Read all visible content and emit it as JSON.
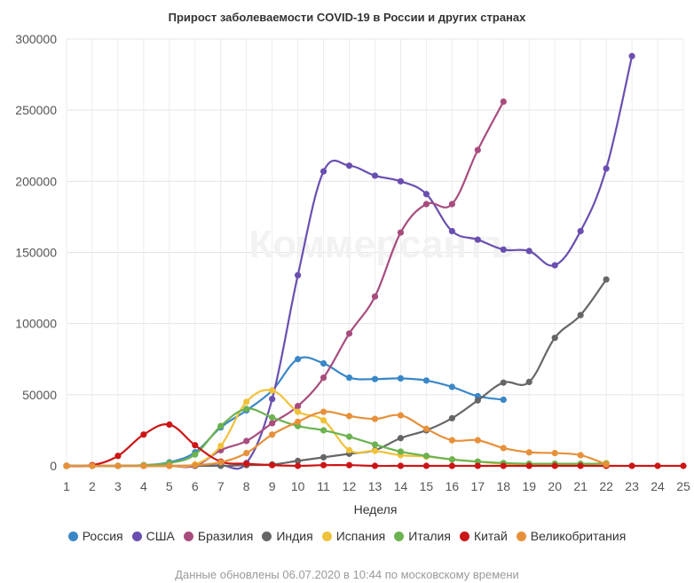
{
  "chart_data": {
    "type": "line",
    "title": "Прирост заболеваемости COVID-19 в России и других странах",
    "xlabel": "Неделя",
    "ylabel": "",
    "xlim": [
      1,
      25
    ],
    "ylim": [
      0,
      300000
    ],
    "x_ticks": [
      1,
      2,
      3,
      4,
      5,
      6,
      7,
      8,
      9,
      10,
      11,
      12,
      13,
      14,
      15,
      16,
      17,
      18,
      19,
      20,
      21,
      22,
      23,
      24,
      25
    ],
    "y_ticks": [
      0,
      50000,
      100000,
      150000,
      200000,
      250000,
      300000
    ],
    "grid": true,
    "legend_position": "bottom",
    "watermark": "Коммерсантъ",
    "footnote": "Данные обновлены 06.07.2020 в 10:44 по московскому времени",
    "series": [
      {
        "name": "Россия",
        "color": "#3a87c8",
        "x": [
          1,
          2,
          3,
          4,
          5,
          6,
          7,
          8,
          9,
          10,
          11,
          12,
          13,
          14,
          15,
          16,
          17,
          18
        ],
        "values": [
          0,
          0,
          0,
          500,
          2500,
          9500,
          27000,
          39000,
          53000,
          75000,
          72000,
          62000,
          61000,
          61500,
          60000,
          55500,
          49000,
          46500
        ]
      },
      {
        "name": "США",
        "color": "#6a4fb0",
        "x": [
          1,
          2,
          3,
          4,
          5,
          6,
          7,
          8,
          9,
          10,
          11,
          12,
          13,
          14,
          15,
          16,
          17,
          18,
          19,
          20,
          21,
          22,
          23
        ],
        "values": [
          0,
          0,
          0,
          0,
          0,
          0,
          500,
          2000,
          47000,
          134000,
          207000,
          211000,
          204000,
          200000,
          191000,
          165000,
          159000,
          152000,
          151000,
          141000,
          165000,
          209000,
          288000
        ]
      },
      {
        "name": "Бразилия",
        "color": "#a84c7e",
        "x": [
          1,
          2,
          3,
          4,
          5,
          6,
          7,
          8,
          9,
          10,
          11,
          12,
          13,
          14,
          15,
          16,
          17,
          18
        ],
        "values": [
          0,
          0,
          0,
          0,
          0,
          0,
          11000,
          17500,
          30000,
          42000,
          62000,
          93000,
          119000,
          164000,
          184000,
          184000,
          222000,
          256000
        ]
      },
      {
        "name": "Индия",
        "color": "#666666",
        "x": [
          1,
          2,
          3,
          4,
          5,
          6,
          7,
          8,
          9,
          10,
          11,
          12,
          13,
          14,
          15,
          16,
          17,
          18,
          19,
          20,
          21,
          22
        ],
        "values": [
          0,
          0,
          0,
          0,
          0,
          0,
          0,
          500,
          1000,
          3500,
          6000,
          8500,
          11000,
          19500,
          25000,
          33500,
          46000,
          58500,
          59000,
          90000,
          106000,
          131000
        ]
      },
      {
        "name": "Испания",
        "color": "#f0c23b",
        "x": [
          1,
          2,
          3,
          4,
          5,
          6,
          7,
          8,
          9,
          10,
          11,
          12,
          13,
          14,
          15,
          16,
          17,
          18,
          19,
          20,
          21,
          22
        ],
        "values": [
          0,
          0,
          0,
          0,
          0,
          1000,
          14000,
          45000,
          53000,
          38000,
          32000,
          11000,
          10500,
          7500,
          6500,
          4500,
          3000,
          1500,
          1000,
          1500,
          1000,
          2000
        ]
      },
      {
        "name": "Италия",
        "color": "#6cb24f",
        "x": [
          1,
          2,
          3,
          4,
          5,
          6,
          7,
          8,
          9,
          10,
          11,
          12,
          13,
          14,
          15,
          16,
          17,
          18,
          19,
          20,
          21,
          22
        ],
        "values": [
          0,
          0,
          0,
          500,
          2000,
          8000,
          28000,
          40000,
          34000,
          28000,
          25000,
          20500,
          15000,
          10000,
          7000,
          4500,
          3000,
          2000,
          1500,
          1500,
          1500,
          1500
        ]
      },
      {
        "name": "Китай",
        "color": "#cc1515",
        "x": [
          1,
          2,
          3,
          4,
          5,
          6,
          7,
          8,
          9,
          10,
          11,
          12,
          13,
          14,
          15,
          16,
          17,
          18,
          19,
          20,
          21,
          22,
          23,
          24,
          25
        ],
        "values": [
          0,
          500,
          7000,
          22000,
          29000,
          14500,
          3000,
          1500,
          500,
          0,
          500,
          500,
          0,
          0,
          0,
          0,
          0,
          0,
          0,
          0,
          0,
          0,
          0,
          0,
          0
        ]
      },
      {
        "name": "Великобритания",
        "color": "#e6913a",
        "x": [
          1,
          2,
          3,
          4,
          5,
          6,
          7,
          8,
          9,
          10,
          11,
          12,
          13,
          14,
          15,
          16,
          17,
          18,
          19,
          20,
          21,
          22
        ],
        "values": [
          0,
          0,
          0,
          0,
          0,
          500,
          2500,
          9000,
          22000,
          31000,
          38000,
          35000,
          33000,
          35500,
          26000,
          18000,
          18000,
          12500,
          9500,
          9000,
          7500,
          1000
        ]
      }
    ]
  }
}
